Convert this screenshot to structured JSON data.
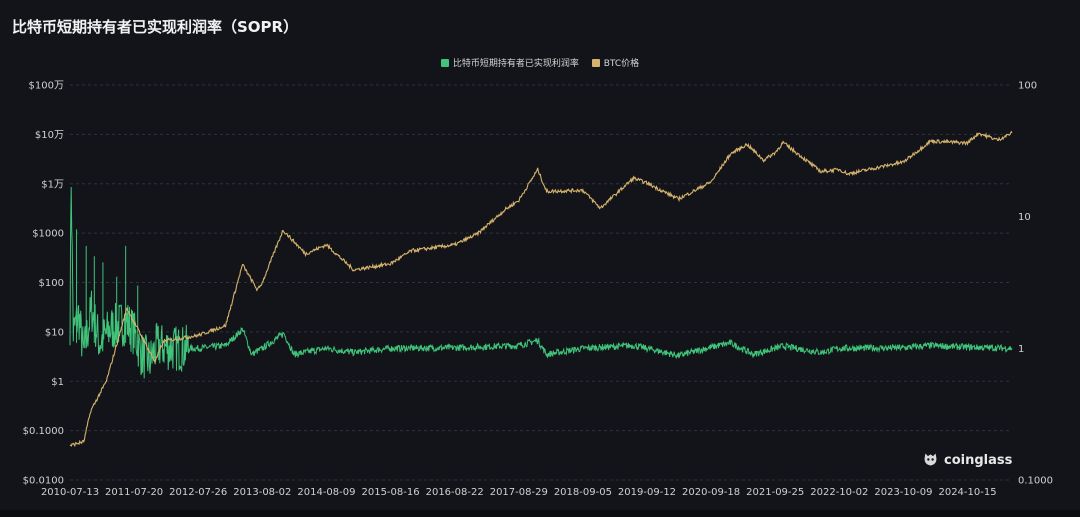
{
  "title": "比特币短期持有者已实现利润率（SOPR）",
  "watermark": "coinglass",
  "colors": {
    "background": "#12141a",
    "grid": "#2e323c",
    "sopr": "#3fc47a",
    "price": "#d6b36c"
  },
  "chart_data": {
    "type": "line",
    "title": "比特币短期持有者已实现利润率（SOPR）",
    "legend": "top-center",
    "grid": true,
    "x_range": [
      "2010-07-13",
      "2025-06-30"
    ],
    "x_ticks": [
      "2010-07-13",
      "2011-07-20",
      "2012-07-26",
      "2013-08-02",
      "2014-08-09",
      "2015-08-16",
      "2016-08-22",
      "2017-08-29",
      "2018-09-05",
      "2019-09-12",
      "2020-09-18",
      "2021-09-25",
      "2022-10-02",
      "2023-10-09",
      "2024-10-15"
    ],
    "y_left": {
      "scale": "log",
      "range": [
        0.01,
        1000000
      ],
      "ticks": [
        0.01,
        0.1,
        1,
        10,
        100,
        1000,
        10000,
        100000,
        1000000
      ],
      "tick_labels": [
        "$0.0100",
        "$0.1000",
        "$1",
        "$10",
        "$100",
        "$1000",
        "$1万",
        "$10万",
        "$100万"
      ]
    },
    "y_right": {
      "scale": "log",
      "range": [
        0.1,
        100
      ],
      "ticks": [
        0.1,
        1,
        10,
        100
      ],
      "tick_labels": [
        "0.1000",
        "1",
        "10",
        "100"
      ]
    },
    "series": [
      {
        "name": "比特币短期持有者已实现利润率",
        "axis": "right",
        "color": "#3fc47a",
        "x": [
          "2010-07-13",
          "2010-07-20",
          "2010-08-01",
          "2010-09-01",
          "2010-10-01",
          "2010-11-15",
          "2011-01-01",
          "2011-03-01",
          "2011-06-08",
          "2011-07-20",
          "2011-09-01",
          "2011-10-20",
          "2011-12-01",
          "2012-03-01",
          "2012-07-26",
          "2013-01-01",
          "2013-04-10",
          "2013-06-01",
          "2013-08-02",
          "2013-12-05",
          "2014-02-01",
          "2014-08-09",
          "2015-01-14",
          "2015-08-16",
          "2016-08-22",
          "2017-08-29",
          "2017-12-17",
          "2018-02-06",
          "2018-09-05",
          "2019-06-26",
          "2019-09-12",
          "2020-03-12",
          "2020-09-18",
          "2021-01-08",
          "2021-05-19",
          "2021-09-25",
          "2021-11-10",
          "2022-06-18",
          "2022-10-02",
          "2023-10-09",
          "2024-03-14",
          "2024-10-15",
          "2025-06-30"
        ],
        "values": [
          1.6,
          20,
          1.3,
          1.8,
          0.9,
          2.0,
          1.1,
          1.4,
          1.6,
          1.3,
          0.9,
          0.8,
          1.05,
          1.0,
          1.0,
          1.05,
          1.4,
          0.9,
          1.0,
          1.3,
          0.9,
          1.0,
          0.93,
          1.0,
          1.01,
          1.05,
          1.15,
          0.9,
          1.0,
          1.05,
          1.0,
          0.88,
          1.02,
          1.1,
          0.9,
          1.0,
          1.04,
          0.93,
          1.0,
          1.01,
          1.05,
          1.02,
          1.0
        ]
      },
      {
        "name": "BTC价格",
        "axis": "left",
        "color": "#d6b36c",
        "x": [
          "2010-07-13",
          "2010-10-01",
          "2010-11-10",
          "2011-02-09",
          "2011-06-08",
          "2011-11-18",
          "2012-01-08",
          "2012-07-26",
          "2013-01-01",
          "2013-04-09",
          "2013-07-05",
          "2013-08-02",
          "2013-11-30",
          "2014-04-10",
          "2014-08-09",
          "2015-01-14",
          "2015-08-16",
          "2015-12-15",
          "2016-08-22",
          "2016-12-31",
          "2017-06-11",
          "2017-08-29",
          "2017-12-17",
          "2018-02-06",
          "2018-09-05",
          "2018-12-15",
          "2019-06-26",
          "2019-09-12",
          "2020-03-12",
          "2020-09-18",
          "2021-01-08",
          "2021-04-14",
          "2021-07-20",
          "2021-09-25",
          "2021-11-10",
          "2022-06-18",
          "2022-10-02",
          "2022-11-21",
          "2023-10-09",
          "2024-03-14",
          "2024-10-15",
          "2024-12-17",
          "2025-04-08",
          "2025-06-30"
        ],
        "values": [
          0.05,
          0.06,
          0.25,
          1.0,
          30,
          2.5,
          6.5,
          8.5,
          13.5,
          230,
          70,
          100,
          1150,
          380,
          580,
          180,
          240,
          440,
          580,
          960,
          3000,
          4600,
          19500,
          7000,
          7400,
          3200,
          13000,
          10300,
          4900,
          10900,
          40000,
          63000,
          30000,
          43000,
          68000,
          17600,
          19500,
          15800,
          27600,
          73000,
          67000,
          106000,
          77000,
          107000
        ]
      }
    ]
  }
}
